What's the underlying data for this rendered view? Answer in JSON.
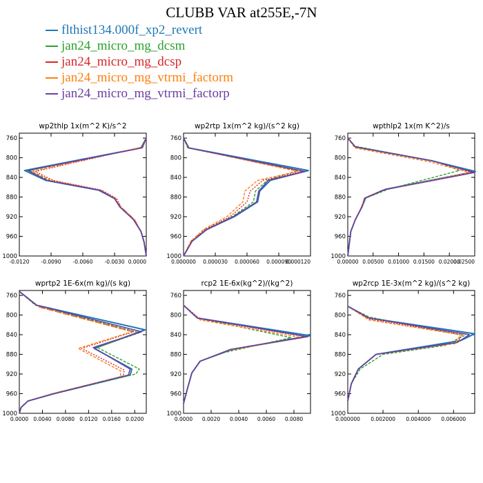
{
  "title": "CLUBB VAR at255E,-7N",
  "legend": [
    {
      "name": "flthist134.000f_xp2_revert",
      "color": "#1f77b4"
    },
    {
      "name": "jan24_micro_mg_dcsm",
      "color": "#2ca02c"
    },
    {
      "name": "jan24_micro_mg_dcsp",
      "color": "#d62728"
    },
    {
      "name": "jan24_micro_mg_vtrmi_factorm",
      "color": "#ff7f0e"
    },
    {
      "name": "jan24_micro_mg_vtrmi_factorp",
      "color": "#6b3fa0"
    }
  ],
  "chart_data": [
    {
      "type": "line",
      "title": "wp2thlp  1x(m^2 K)/s^2",
      "xlim": [
        -0.012,
        0.0
      ],
      "ylim": [
        1000,
        750
      ],
      "xticks": [
        -0.012,
        -0.009,
        -0.006,
        -0.003,
        0.0
      ],
      "xtick_labels": [
        "-0.0120",
        "-0.0090",
        "-0.0060",
        "-0.0030",
        "0.0000"
      ],
      "yticks": [
        760,
        800,
        840,
        880,
        920,
        960,
        1000
      ],
      "series": [
        {
          "x": [
            0.0,
            -0.0005,
            -0.0115,
            -0.0095,
            -0.0045,
            -0.003,
            -0.0025,
            -0.0012,
            -0.0005,
            -0.0002,
            0.0
          ],
          "y": [
            760,
            780,
            826,
            846,
            866,
            883,
            900,
            926,
            950,
            972,
            1000
          ]
        },
        {
          "x": [
            0.0,
            -0.0005,
            -0.011,
            -0.0092,
            -0.0044,
            -0.003,
            -0.0025,
            -0.0012,
            -0.0005,
            -0.0002,
            0.0
          ],
          "y": [
            760,
            780,
            826,
            846,
            866,
            883,
            900,
            926,
            950,
            972,
            1000
          ]
        },
        {
          "x": [
            0.0,
            -0.0003,
            -0.0105,
            -0.0088,
            -0.0042,
            -0.0028,
            -0.0024,
            -0.0011,
            -0.0005,
            -0.0002,
            0.0
          ],
          "y": [
            760,
            778,
            828,
            846,
            866,
            883,
            900,
            926,
            950,
            972,
            1000
          ]
        },
        {
          "x": [
            0.0,
            -0.0003,
            -0.0108,
            -0.009,
            -0.0043,
            -0.0029,
            -0.0024,
            -0.0011,
            -0.0005,
            -0.0002,
            0.0
          ],
          "y": [
            760,
            778,
            828,
            846,
            866,
            883,
            900,
            926,
            950,
            972,
            1000
          ]
        },
        {
          "x": [
            0.0,
            -0.0004,
            -0.0112,
            -0.0094,
            -0.0044,
            -0.003,
            -0.0025,
            -0.0012,
            -0.0005,
            -0.0002,
            0.0
          ],
          "y": [
            760,
            780,
            826,
            846,
            866,
            883,
            900,
            926,
            950,
            972,
            1000
          ]
        }
      ]
    },
    {
      "type": "line",
      "title": "wp2rtp  1x(m^2 kg)/(s^2 kg)",
      "xlim": [
        0.0,
        0.00012
      ],
      "ylim": [
        1000,
        750
      ],
      "xticks": [
        0.0,
        3e-05,
        6e-05,
        9e-05,
        0.00012
      ],
      "xtick_labels": [
        "0.000000",
        "0.000030",
        "0.000060",
        "0.000090",
        "0.000120"
      ],
      "yticks": [
        760,
        800,
        840,
        880,
        920,
        960,
        1000
      ],
      "series": [
        {
          "x": [
            0.0,
            5e-06,
            0.000118,
            8.2e-05,
            7.2e-05,
            7e-05,
            4.8e-05,
            2.2e-05,
            8e-06,
            0.0
          ],
          "y": [
            760,
            780,
            826,
            846,
            868,
            890,
            920,
            946,
            970,
            1000
          ]
        },
        {
          "x": [
            0.0,
            4e-06,
            0.000108,
            7.9e-05,
            6.8e-05,
            6.6e-05,
            4.6e-05,
            2.1e-05,
            8e-06,
            0.0
          ],
          "y": [
            760,
            780,
            826,
            846,
            868,
            890,
            920,
            946,
            970,
            1000
          ]
        },
        {
          "x": [
            0.0,
            5e-06,
            0.000112,
            7.5e-05,
            6.3e-05,
            6e-05,
            4.4e-05,
            2e-05,
            7e-06,
            0.0
          ],
          "y": [
            760,
            780,
            828,
            846,
            868,
            890,
            920,
            946,
            970,
            1000
          ]
        },
        {
          "x": [
            0.0,
            5e-06,
            0.000108,
            7e-05,
            5.8e-05,
            5.6e-05,
            4.1e-05,
            1.9e-05,
            7e-06,
            0.0
          ],
          "y": [
            760,
            780,
            828,
            846,
            868,
            890,
            920,
            946,
            970,
            1000
          ]
        },
        {
          "x": [
            0.0,
            5e-06,
            0.000115,
            8e-05,
            7.1e-05,
            6.9e-05,
            4.7e-05,
            2.2e-05,
            8e-06,
            0.0
          ],
          "y": [
            760,
            780,
            828,
            846,
            868,
            890,
            920,
            946,
            970,
            1000
          ]
        }
      ]
    },
    {
      "type": "line",
      "title": "wpthlp2  1x(m K^2)/s",
      "xlim": [
        0.0,
        0.025
      ],
      "ylim": [
        1000,
        750
      ],
      "xticks": [
        0.0,
        0.005,
        0.01,
        0.015,
        0.02,
        0.025
      ],
      "xtick_labels": [
        "0.00000",
        "0.00500",
        "0.01000",
        "0.01500",
        "0.02000",
        "0.02500"
      ],
      "yticks": [
        760,
        800,
        840,
        880,
        920,
        960,
        1000
      ],
      "series": [
        {
          "x": [
            0.0,
            0.0015,
            0.0165,
            0.0255,
            0.0075,
            0.0035,
            0.0028,
            0.0015,
            0.0006,
            0.0
          ],
          "y": [
            760,
            778,
            806,
            828,
            864,
            882,
            900,
            926,
            950,
            1000
          ]
        },
        {
          "x": [
            0.0,
            0.0012,
            0.0175,
            0.022,
            0.008,
            0.0035,
            0.0028,
            0.0015,
            0.0006,
            0.0
          ],
          "y": [
            760,
            776,
            808,
            826,
            864,
            882,
            900,
            926,
            950,
            1000
          ]
        },
        {
          "x": [
            0.0,
            0.0015,
            0.0165,
            0.0245,
            0.007,
            0.0033,
            0.0027,
            0.0015,
            0.0006,
            0.0
          ],
          "y": [
            760,
            778,
            806,
            830,
            866,
            882,
            900,
            926,
            950,
            1000
          ]
        },
        {
          "x": [
            0.0,
            0.0014,
            0.016,
            0.024,
            0.0068,
            0.0033,
            0.0027,
            0.0015,
            0.0006,
            0.0
          ],
          "y": [
            760,
            780,
            808,
            830,
            866,
            882,
            900,
            926,
            950,
            1000
          ]
        },
        {
          "x": [
            0.0,
            0.0015,
            0.0165,
            0.025,
            0.0072,
            0.0034,
            0.0028,
            0.0015,
            0.0006,
            0.0
          ],
          "y": [
            760,
            778,
            806,
            830,
            865,
            882,
            900,
            926,
            950,
            1000
          ]
        }
      ]
    },
    {
      "type": "line",
      "title": "wprtp2  1E-6x(m kg)/(s kg)",
      "xlim": [
        0.0,
        0.022
      ],
      "ylim": [
        1000,
        750
      ],
      "xticks": [
        0.0,
        0.004,
        0.008,
        0.012,
        0.016,
        0.02
      ],
      "xtick_labels": [
        "0.0000",
        "0.0040",
        "0.0080",
        "0.0120",
        "0.0160",
        "0.0200"
      ],
      "yticks": [
        760,
        800,
        840,
        880,
        920,
        960,
        1000
      ],
      "series": [
        {
          "x": [
            0.0,
            0.003,
            0.0218,
            0.013,
            0.0195,
            0.0192,
            0.006,
            0.0015,
            0.0003,
            0.0
          ],
          "y": [
            752,
            780,
            830,
            868,
            910,
            922,
            960,
            975,
            988,
            1000
          ]
        },
        {
          "x": [
            0.0,
            0.0028,
            0.0208,
            0.0135,
            0.0208,
            0.0202,
            0.0062,
            0.0015,
            0.0003,
            0.0
          ],
          "y": [
            752,
            780,
            836,
            866,
            910,
            920,
            960,
            975,
            988,
            1000
          ]
        },
        {
          "x": [
            0.0,
            0.0035,
            0.0198,
            0.0108,
            0.0182,
            0.018,
            0.0058,
            0.0015,
            0.0003,
            0.0
          ],
          "y": [
            752,
            784,
            834,
            868,
            912,
            924,
            960,
            975,
            988,
            1000
          ]
        },
        {
          "x": [
            0.0,
            0.0035,
            0.0195,
            0.0102,
            0.0176,
            0.0175,
            0.0057,
            0.0015,
            0.0003,
            0.0
          ],
          "y": [
            752,
            784,
            834,
            868,
            914,
            926,
            960,
            975,
            988,
            1000
          ]
        },
        {
          "x": [
            0.0,
            0.003,
            0.0212,
            0.0128,
            0.0192,
            0.0189,
            0.006,
            0.0015,
            0.0003,
            0.0
          ],
          "y": [
            752,
            780,
            834,
            866,
            910,
            922,
            960,
            975,
            988,
            1000
          ]
        }
      ]
    },
    {
      "type": "line",
      "title": "rcp2  1E-6x(kg^2)/(kg^2)",
      "xlim": [
        0.0,
        0.0092
      ],
      "ylim": [
        1000,
        750
      ],
      "xticks": [
        0.0,
        0.002,
        0.004,
        0.006,
        0.008
      ],
      "xtick_labels": [
        "0.0000",
        "0.0020",
        "0.0040",
        "0.0060",
        "0.0080"
      ],
      "yticks": [
        760,
        800,
        840,
        880,
        920,
        960,
        1000
      ],
      "series": [
        {
          "x": [
            0.0,
            0.001,
            0.0092,
            0.0035,
            0.0012,
            0.0006,
            0.0003,
            0.0
          ],
          "y": [
            780,
            806,
            842,
            870,
            894,
            918,
            948,
            980
          ]
        },
        {
          "x": [
            0.0,
            0.001,
            0.0078,
            0.003,
            0.0012,
            0.0006,
            0.0003,
            0.0
          ],
          "y": [
            780,
            806,
            846,
            876,
            894,
            918,
            948,
            980
          ]
        },
        {
          "x": [
            0.0,
            0.0012,
            0.0088,
            0.0032,
            0.0012,
            0.0006,
            0.0003,
            0.0
          ],
          "y": [
            780,
            808,
            844,
            872,
            894,
            918,
            948,
            980
          ]
        },
        {
          "x": [
            0.0,
            0.0012,
            0.0086,
            0.0032,
            0.0012,
            0.0006,
            0.0003,
            0.0
          ],
          "y": [
            780,
            810,
            846,
            872,
            894,
            918,
            948,
            980
          ]
        },
        {
          "x": [
            0.0,
            0.001,
            0.009,
            0.0034,
            0.0012,
            0.0006,
            0.0003,
            0.0
          ],
          "y": [
            780,
            806,
            844,
            870,
            894,
            918,
            948,
            980
          ]
        }
      ]
    },
    {
      "type": "line",
      "title": "wp2rcp  1E-3x(m^2 kg)/(s^2 kg)",
      "xlim": [
        0.0,
        0.0072
      ],
      "ylim": [
        1000,
        750
      ],
      "xticks": [
        0.0,
        0.002,
        0.004,
        0.006
      ],
      "xtick_labels": [
        "0.000000",
        "0.002000",
        "0.004000",
        "0.006000"
      ],
      "yticks": [
        760,
        800,
        840,
        880,
        920,
        960,
        1000
      ],
      "series": [
        {
          "x": [
            0.0,
            0.0012,
            0.0072,
            0.0064,
            0.0016,
            0.0006,
            0.0002,
            0.0
          ],
          "y": [
            782,
            806,
            838,
            852,
            880,
            910,
            940,
            975
          ]
        },
        {
          "x": [
            0.0,
            0.0012,
            0.0066,
            0.0055,
            0.002,
            0.0007,
            0.0002,
            0.0
          ],
          "y": [
            782,
            804,
            842,
            862,
            880,
            910,
            940,
            975
          ]
        },
        {
          "x": [
            0.0,
            0.0012,
            0.0065,
            0.0062,
            0.0016,
            0.0006,
            0.0002,
            0.0
          ],
          "y": [
            782,
            808,
            840,
            856,
            880,
            910,
            940,
            975
          ]
        },
        {
          "x": [
            0.0,
            0.0012,
            0.0064,
            0.0061,
            0.0016,
            0.0006,
            0.0002,
            0.0
          ],
          "y": [
            782,
            810,
            840,
            858,
            880,
            910,
            940,
            975
          ]
        },
        {
          "x": [
            0.0,
            0.0012,
            0.0069,
            0.0062,
            0.0016,
            0.0006,
            0.0002,
            0.0
          ],
          "y": [
            782,
            806,
            840,
            856,
            880,
            910,
            940,
            975
          ]
        }
      ]
    }
  ]
}
